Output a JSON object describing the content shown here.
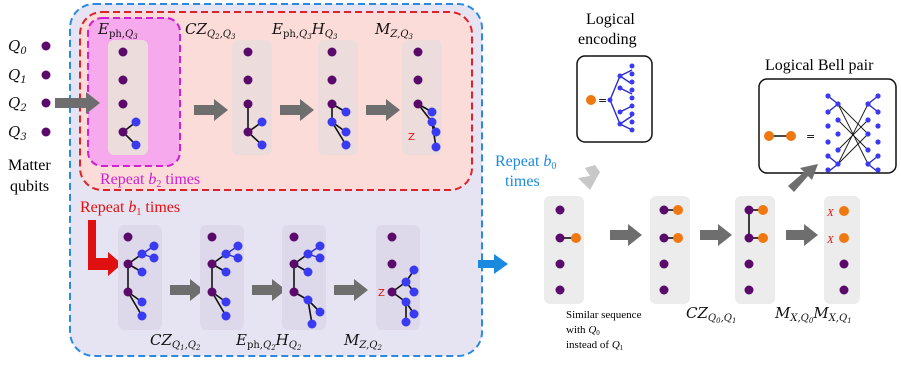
{
  "matter": {
    "qubit_labels": [
      "Q_0",
      "Q_1",
      "Q_2",
      "Q_3"
    ],
    "caption_line1": "Matter",
    "caption_line2": "qubits"
  },
  "inner_loop": {
    "repeat_label": "Repeat b_2 times",
    "stage_labels": [
      "E_ph,Q3",
      "CZ_Q2,Q3",
      "E_ph,Q3 H_Q3",
      "M_Z,Q3"
    ],
    "measure_mark": "Z"
  },
  "middle_loop": {
    "repeat_label": "Repeat b_1 times",
    "stage_labels": [
      "CZ_Q1,Q2",
      "E_ph,Q2 H_Q2",
      "M_Z,Q2"
    ],
    "measure_mark": "Z"
  },
  "outer_loop": {
    "repeat_label_line1": "Repeat b_0",
    "repeat_label_line2": "times"
  },
  "logical_encoding": {
    "title_line1": "Logical",
    "title_line2": "encoding"
  },
  "logical_bell": {
    "title": "Logical Bell pair"
  },
  "final_sequence": {
    "note_line1": "Similar sequence",
    "note_line2": "with  Q_0",
    "note_line3": "instead of  Q_1",
    "stage_labels": [
      "CZ_Q0,Q1",
      "M_X,Q0 M_X,Q1"
    ],
    "measure_mark": "X"
  },
  "colors": {
    "matter_qubit": "#5a0a6a",
    "photon": "#3a3af0",
    "logical": "#f07810",
    "inner_border": "#e0202a",
    "middle_border": "#e020e0",
    "outer_border": "#2a8ae0",
    "repeat_b1": "#e01010",
    "repeat_b2": "#d020d0",
    "repeat_b0": "#1a8ae0"
  }
}
